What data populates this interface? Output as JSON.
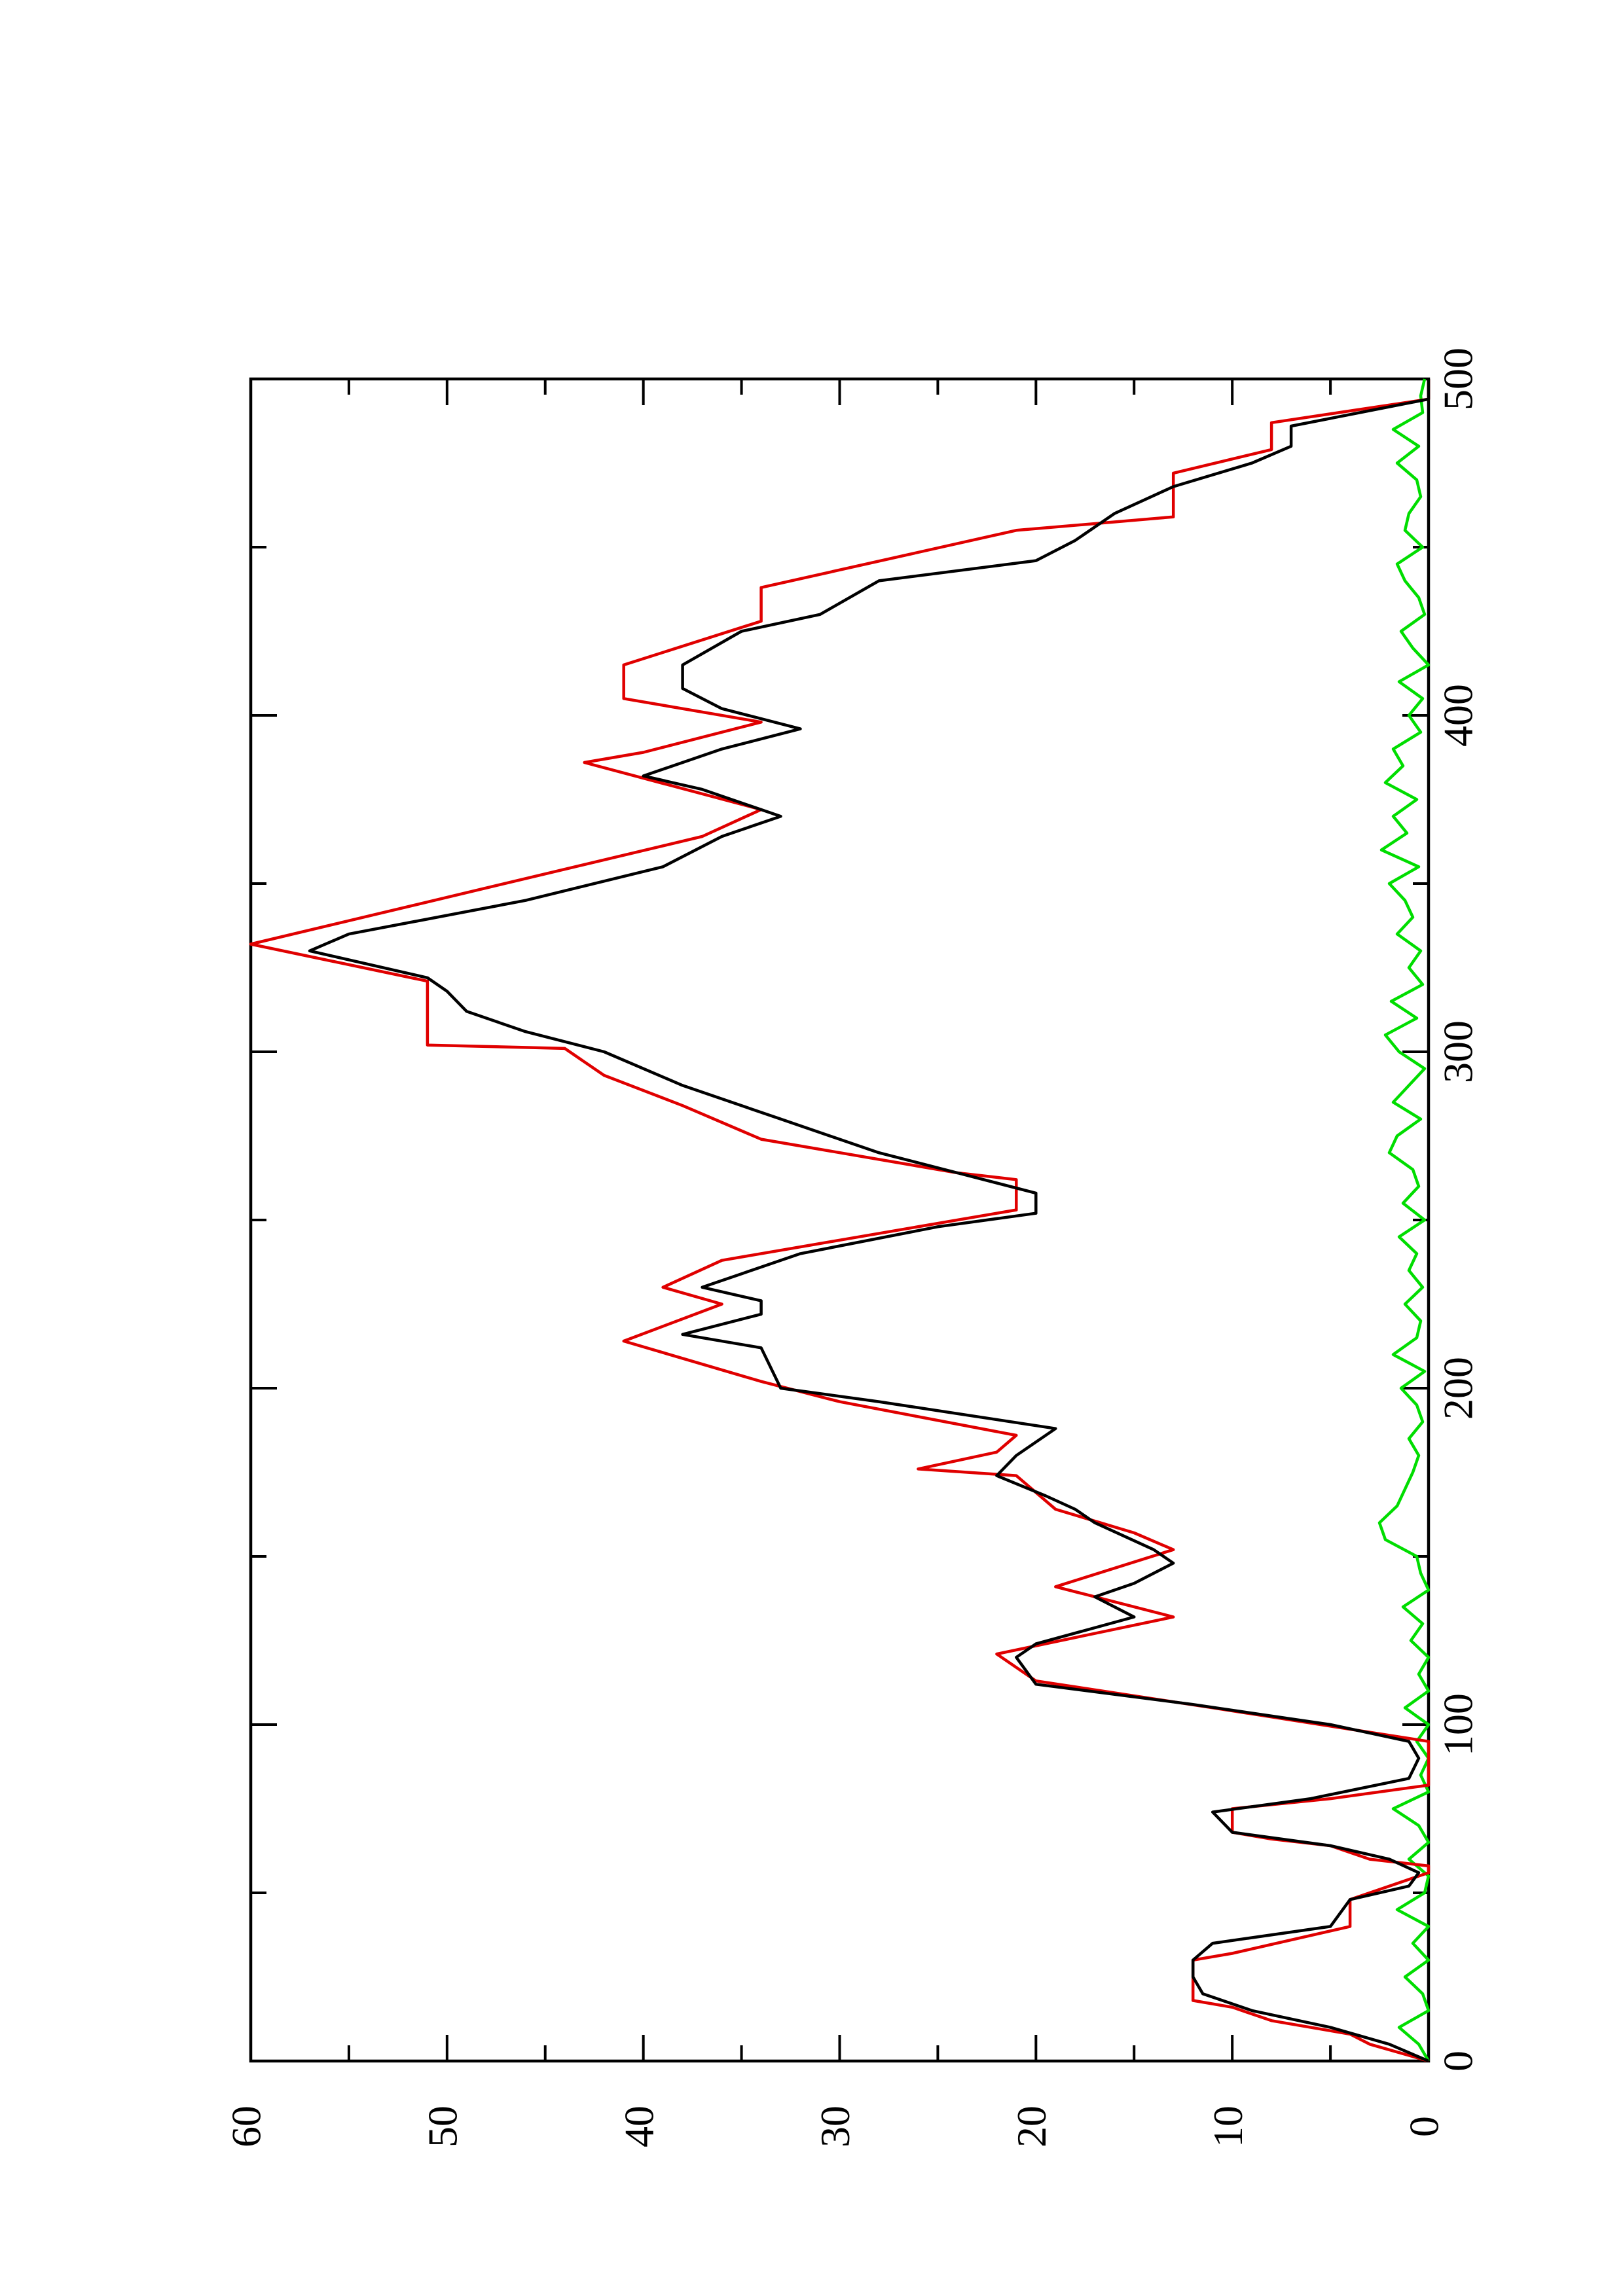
{
  "chart_data": {
    "type": "line",
    "orientation": "rotated",
    "xlim": [
      0,
      500
    ],
    "xticks": [
      0,
      100,
      200,
      300,
      400,
      500
    ],
    "xminor_ticks": [
      50,
      150,
      250,
      350,
      450
    ],
    "ylim": [
      0,
      60
    ],
    "yticks": [
      0,
      10,
      20,
      30,
      40,
      50,
      60
    ],
    "yminor_ticks": [
      5,
      15,
      25,
      35,
      45,
      55
    ],
    "series": [
      {
        "color": "#000000",
        "x": [
          0,
          5,
          10,
          15,
          20,
          25,
          30,
          35,
          40,
          48,
          52,
          56,
          60,
          64,
          68,
          74,
          78,
          84,
          90,
          95,
          100,
          106,
          112,
          120,
          124,
          132,
          138,
          142,
          148,
          152,
          160,
          164,
          168,
          174,
          180,
          188,
          196,
          200,
          212,
          216,
          222,
          226,
          230,
          234,
          240,
          248,
          252,
          258,
          264,
          270,
          280,
          290,
          300,
          306,
          312,
          318,
          322,
          330,
          335,
          345,
          355,
          364,
          370,
          378,
          382,
          386,
          390,
          396,
          402,
          408,
          415,
          425,
          430,
          440,
          446,
          452,
          460,
          468,
          475,
          480,
          486,
          494,
          500
        ],
        "values": [
          0,
          2,
          5,
          9,
          11.5,
          12,
          12,
          11,
          5,
          4,
          1,
          0.5,
          2,
          5,
          10,
          11,
          6,
          1,
          0.5,
          1,
          5,
          12,
          20,
          21,
          20,
          15,
          17,
          15,
          13,
          14,
          17,
          18,
          19.5,
          22,
          21,
          19,
          28,
          33,
          34,
          38,
          34,
          34,
          37,
          35,
          32,
          25,
          20,
          20,
          24,
          28,
          33,
          38,
          42,
          46,
          49,
          50,
          51,
          57,
          55,
          46,
          39,
          36,
          33,
          37,
          40,
          38,
          36,
          32,
          36,
          38,
          38,
          35,
          31,
          28,
          20,
          18,
          16,
          13,
          9,
          7,
          7,
          0,
          0
        ]
      },
      {
        "color": "#e00000",
        "x": [
          0,
          5,
          8,
          12,
          16,
          18,
          30,
          32,
          40,
          48,
          50,
          56,
          58,
          60,
          64,
          66,
          68,
          75,
          78,
          82,
          84,
          92,
          95,
          105,
          113,
          121,
          132,
          141,
          152,
          157,
          164,
          174,
          176,
          181,
          186,
          196,
          202,
          214,
          225,
          230,
          238,
          244,
          253,
          262,
          264,
          274,
          284,
          293,
          301,
          302,
          321,
          332,
          364,
          372,
          386,
          389,
          398,
          405,
          415,
          428,
          438,
          455,
          459,
          472,
          479,
          487,
          494,
          500
        ],
        "values": [
          0,
          3,
          4,
          8,
          10,
          12,
          12,
          10,
          4,
          4,
          3,
          0,
          0,
          3,
          5,
          8,
          10,
          10,
          5,
          0,
          0,
          0,
          0,
          11,
          20,
          22,
          13,
          19,
          13,
          15,
          19,
          21,
          26,
          22,
          21,
          30,
          34,
          41,
          36,
          39,
          36,
          30,
          21,
          21,
          24,
          34,
          38,
          42,
          44,
          51,
          51,
          60,
          37,
          34,
          43,
          40,
          34,
          41,
          41,
          34,
          34,
          21,
          13,
          13,
          8,
          8,
          0,
          0
        ]
      },
      {
        "color": "#00dd00",
        "x": [
          0,
          5,
          10,
          15,
          20,
          25,
          30,
          35,
          40,
          45,
          50,
          55,
          60,
          65,
          70,
          75,
          80,
          85,
          90,
          95,
          100,
          105,
          110,
          115,
          120,
          125,
          130,
          135,
          140,
          145,
          150,
          155,
          160,
          165,
          170,
          175,
          180,
          185,
          190,
          195,
          200,
          205,
          210,
          215,
          220,
          225,
          230,
          235,
          240,
          245,
          250,
          255,
          260,
          265,
          270,
          275,
          280,
          285,
          290,
          295,
          300,
          305,
          310,
          315,
          320,
          325,
          330,
          335,
          340,
          345,
          350,
          355,
          360,
          365,
          370,
          375,
          380,
          385,
          390,
          395,
          400,
          405,
          410,
          415,
          420,
          425,
          430,
          435,
          440,
          445,
          450,
          455,
          460,
          465,
          470,
          475,
          480,
          485,
          490,
          495,
          500
        ],
        "values": [
          0,
          0.5,
          1.5,
          0,
          0.3,
          1.2,
          0,
          0.8,
          0,
          1.6,
          0.2,
          0,
          1,
          0,
          0.5,
          1.8,
          0,
          0.4,
          0,
          0.6,
          0,
          1.2,
          0,
          0.5,
          0,
          0.9,
          0.3,
          1.3,
          0,
          0.4,
          0.6,
          2.2,
          2.5,
          1.6,
          1.2,
          0.8,
          0.5,
          1,
          0.3,
          0.6,
          1.4,
          0.2,
          1.8,
          0.6,
          0.4,
          1.2,
          0.3,
          1,
          0.6,
          1.5,
          0.2,
          1.3,
          0.5,
          0.8,
          2,
          1.6,
          0.4,
          1.8,
          1,
          0.2,
          1.5,
          2.2,
          0.6,
          1.9,
          0.3,
          1,
          0.4,
          1.6,
          0.8,
          1.2,
          2,
          0.5,
          2.4,
          1.1,
          1.8,
          0.6,
          2.2,
          1.3,
          1.8,
          0.4,
          1,
          0.3,
          1.5,
          0,
          0.8,
          1.4,
          0.2,
          0.5,
          1.2,
          1.6,
          0.3,
          1.2,
          1,
          0.4,
          0.6,
          1.6,
          0.5,
          1.8,
          0.3,
          0.4,
          0.2
        ]
      }
    ]
  }
}
